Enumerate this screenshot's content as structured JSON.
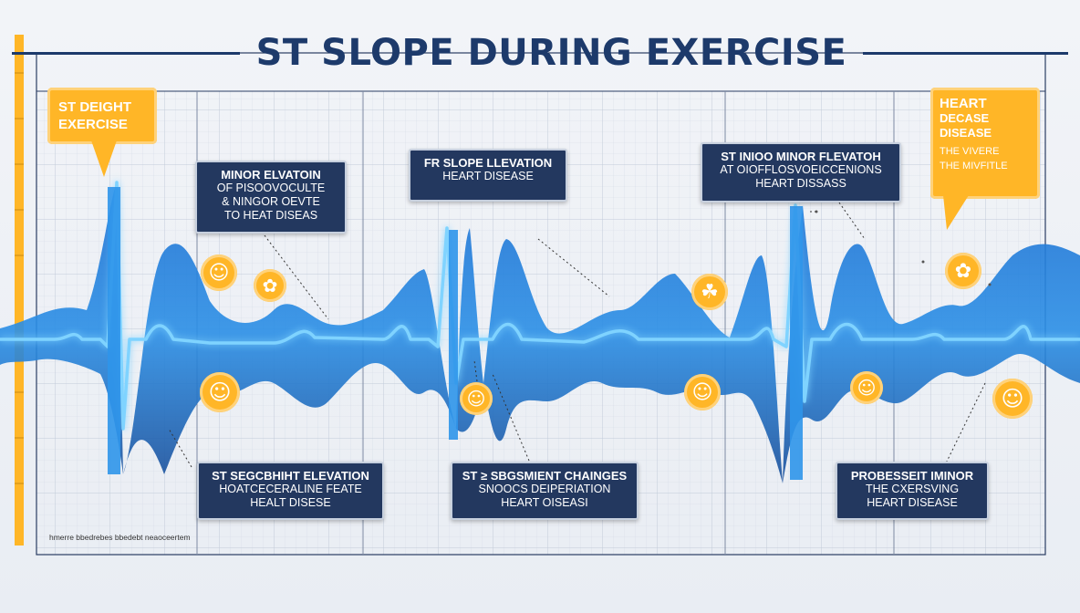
{
  "title": "ST SLOPE DURING EXERCISE",
  "colors": {
    "navy": "#23385f",
    "accent_yellow": "#ffb627",
    "wave_blue": "#1f7fd6",
    "title_blue": "#1d3a6b"
  },
  "callouts": {
    "top_left_yellow": {
      "lines": [
        "ST DEIGHT",
        "EXERCISE"
      ]
    },
    "box_minor_elevation": {
      "lines": [
        "MINOR ELVATOIN",
        "OF PISOOVOCULTE",
        "& NINGOR OEVTE",
        "TO HEAT DISEAS"
      ]
    },
    "box_slope_elevation": {
      "lines": [
        "FR SLOPE LLEVATION",
        "HEART DISEASE"
      ]
    },
    "box_minor_heart": {
      "lines": [
        "ST INIOO MINOR FLEVATOH",
        "AT OIOFFLOSVOEICCENIONS",
        "HEART DISSASS"
      ]
    },
    "top_right_yellow": {
      "lines": [
        "HEART",
        "DECASE",
        "DISEASE",
        "THE VIVERE",
        "THE MIVFITLE"
      ]
    },
    "box_segment_elevation": {
      "lines": [
        "ST SEGCBHIHT ELEVATION",
        "HOATCECERALINE FEATE",
        "HEALT DISESE"
      ]
    },
    "box_segment_changes": {
      "lines": [
        "ST ≥ SBGSMIENT CHAINGES",
        "SNOOCS DEIPERIATION",
        "HEART OISEASI"
      ]
    },
    "box_progressive_minor": {
      "lines": [
        "PROBESSEIT IMINOR",
        "THE CXERSVING",
        "HEART DISEASE"
      ]
    }
  },
  "icons": [
    {
      "name": "figure-icon",
      "symbol": "☺"
    },
    {
      "name": "figure-icon",
      "symbol": "✿"
    },
    {
      "name": "figure-icon",
      "symbol": "☺"
    },
    {
      "name": "figure-icon",
      "symbol": "☺"
    },
    {
      "name": "figure-icon",
      "symbol": "☘"
    },
    {
      "name": "figure-icon",
      "symbol": "☺"
    },
    {
      "name": "figure-icon",
      "symbol": "☺"
    },
    {
      "name": "figure-icon",
      "symbol": "✿"
    },
    {
      "name": "figure-icon",
      "symbol": "☺"
    }
  ],
  "footnote": "hmerre bbedrebes bbedebt neaoceertem"
}
